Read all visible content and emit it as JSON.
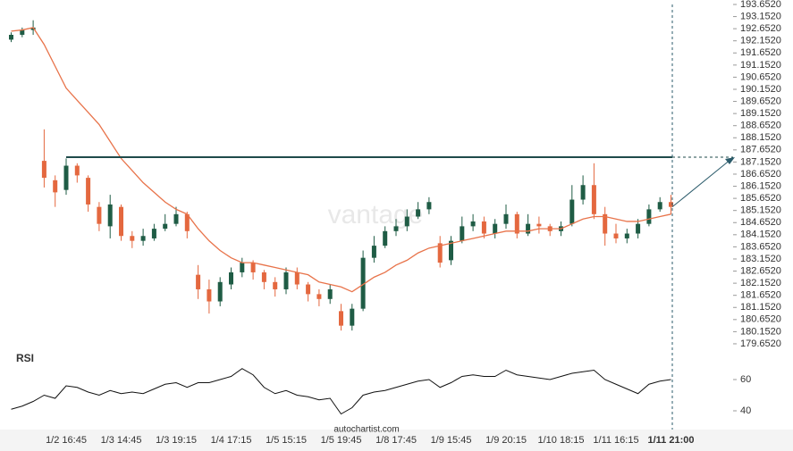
{
  "chart_data": [
    {
      "type": "candlestick",
      "categories": [
        null,
        null,
        null,
        null,
        null,
        "1/2 16:45",
        null,
        null,
        null,
        null,
        "1/3 14:45",
        null,
        null,
        null,
        null,
        "1/3 19:15",
        null,
        null,
        null,
        null,
        "1/4 17:15",
        null,
        null,
        null,
        null,
        "1/5 15:15",
        null,
        null,
        null,
        null,
        "1/5 19:45",
        null,
        null,
        null,
        null,
        "1/8 17:45",
        null,
        null,
        null,
        null,
        "1/9 15:45",
        null,
        null,
        null,
        null,
        "1/9 20:15",
        null,
        null,
        null,
        null,
        "1/10 18:15",
        null,
        null,
        null,
        null,
        "1/11 16:15",
        null,
        null,
        null,
        null,
        "1/11 21:00"
      ],
      "open": [
        192.2,
        192.4,
        192.6,
        187.2,
        186.4,
        186.0,
        187.0,
        186.5,
        185.3,
        184.5,
        185.3,
        184.1,
        183.9,
        184.0,
        184.4,
        184.6,
        185.0,
        182.5,
        181.9,
        181.4,
        182.1,
        182.6,
        183.0,
        182.6,
        182.2,
        181.9,
        182.6,
        182.1,
        181.7,
        181.5,
        181.0,
        180.4,
        181.1,
        183.2,
        183.7,
        184.3,
        184.5,
        184.9,
        185.2,
        183.8,
        183.1,
        183.9,
        184.5,
        184.7,
        184.2,
        184.6,
        185.0,
        184.2,
        184.6,
        184.5,
        184.3,
        184.6,
        185.6,
        186.2,
        185.0,
        184.2,
        184.0,
        184.2,
        184.6,
        185.2,
        185.5
      ],
      "high": [
        192.5,
        192.7,
        193.0,
        188.5,
        186.6,
        187.3,
        187.1,
        186.6,
        185.5,
        185.8,
        185.4,
        184.3,
        184.4,
        184.6,
        185.0,
        185.3,
        185.1,
        182.9,
        182.3,
        182.4,
        182.8,
        183.2,
        183.1,
        182.7,
        182.4,
        182.8,
        182.8,
        182.2,
        181.9,
        182.1,
        181.3,
        181.3,
        183.5,
        184.1,
        184.5,
        184.8,
        185.2,
        185.5,
        185.7,
        184.1,
        184.1,
        184.9,
        185.0,
        184.9,
        184.8,
        185.4,
        185.1,
        185.0,
        184.9,
        184.6,
        184.7,
        186.2,
        186.6,
        187.1,
        185.3,
        184.6,
        184.4,
        184.8,
        185.4,
        185.7,
        185.8
      ],
      "low": [
        192.1,
        192.3,
        192.4,
        186.1,
        185.3,
        185.8,
        186.3,
        185.1,
        184.3,
        184.0,
        183.9,
        183.6,
        183.7,
        183.9,
        184.3,
        184.5,
        184.0,
        181.5,
        180.9,
        181.2,
        181.9,
        182.4,
        182.3,
        181.9,
        181.6,
        181.7,
        181.9,
        181.4,
        181.2,
        181.3,
        180.2,
        180.2,
        181.0,
        183.0,
        183.6,
        184.1,
        184.3,
        184.8,
        185.0,
        182.8,
        182.9,
        183.8,
        184.3,
        184.0,
        184.0,
        184.4,
        184.0,
        184.1,
        184.2,
        184.1,
        184.1,
        184.5,
        185.4,
        184.8,
        183.7,
        183.8,
        183.8,
        184.0,
        184.5,
        185.1,
        185.0
      ],
      "close": [
        192.4,
        192.6,
        192.7,
        186.5,
        185.9,
        187.0,
        186.6,
        185.4,
        184.6,
        185.4,
        184.1,
        183.9,
        184.1,
        184.4,
        184.6,
        185.0,
        184.3,
        181.9,
        181.4,
        182.2,
        182.6,
        183.0,
        182.6,
        182.2,
        181.9,
        182.6,
        182.1,
        181.7,
        181.5,
        181.9,
        180.4,
        181.1,
        183.2,
        183.7,
        184.3,
        184.5,
        184.9,
        185.2,
        185.5,
        183.0,
        183.9,
        184.5,
        184.7,
        184.2,
        184.6,
        185.0,
        184.2,
        184.6,
        184.5,
        184.3,
        184.5,
        185.6,
        186.2,
        185.0,
        184.2,
        184.0,
        184.2,
        184.6,
        185.2,
        185.5,
        185.3
      ],
      "up_color": "#1f5c45",
      "down_color": "#e4683f",
      "moving_average": {
        "color": "#e8734a",
        "values": [
          192.55,
          192.6,
          192.7,
          192.0,
          191.1,
          190.2,
          189.7,
          189.2,
          188.7,
          188.0,
          187.3,
          186.8,
          186.3,
          185.9,
          185.5,
          185.2,
          185.0,
          184.4,
          183.9,
          183.5,
          183.2,
          183.0,
          183.0,
          182.9,
          182.8,
          182.7,
          182.6,
          182.5,
          182.2,
          182.1,
          182.0,
          181.8,
          182.1,
          182.4,
          182.6,
          182.9,
          183.1,
          183.4,
          183.6,
          183.7,
          183.8,
          183.9,
          184.0,
          184.1,
          184.2,
          184.3,
          184.3,
          184.3,
          184.4,
          184.4,
          184.4,
          184.6,
          184.8,
          184.9,
          184.9,
          184.8,
          184.7,
          184.7,
          184.8,
          184.9,
          185.0
        ]
      },
      "resistance": {
        "value": 187.35,
        "color": "#1e4a4a"
      },
      "ylim": [
        179.4,
        193.652
      ],
      "yticks": [
        {
          "value": 193.652,
          "label": "193.6520"
        },
        {
          "value": 193.152,
          "label": "193.1520"
        },
        {
          "value": 192.652,
          "label": "192.6520"
        },
        {
          "value": 192.152,
          "label": "192.1520"
        },
        {
          "value": 191.652,
          "label": "191.6520"
        },
        {
          "value": 191.152,
          "label": "191.1520"
        },
        {
          "value": 190.652,
          "label": "190.6520"
        },
        {
          "value": 190.152,
          "label": "190.1520"
        },
        {
          "value": 189.652,
          "label": "189.6520"
        },
        {
          "value": 189.152,
          "label": "189.1520"
        },
        {
          "value": 188.652,
          "label": "188.6520"
        },
        {
          "value": 188.152,
          "label": "188.1520"
        },
        {
          "value": 187.652,
          "label": "187.6520"
        },
        {
          "value": 187.152,
          "label": "187.1520"
        },
        {
          "value": 186.652,
          "label": "186.6520"
        },
        {
          "value": 186.152,
          "label": "186.1520"
        },
        {
          "value": 185.652,
          "label": "185.6520"
        },
        {
          "value": 185.152,
          "label": "185.1520"
        },
        {
          "value": 184.652,
          "label": "184.6520"
        },
        {
          "value": 184.152,
          "label": "184.1520"
        },
        {
          "value": 183.652,
          "label": "183.6520"
        },
        {
          "value": 183.152,
          "label": "183.1520"
        },
        {
          "value": 182.652,
          "label": "182.6520"
        },
        {
          "value": 182.152,
          "label": "182.1520"
        },
        {
          "value": 181.652,
          "label": "181.6520"
        },
        {
          "value": 181.152,
          "label": "181.1520"
        },
        {
          "value": 180.652,
          "label": "180.6520"
        },
        {
          "value": 180.152,
          "label": "180.1520"
        },
        {
          "value": 179.652,
          "label": "179.6520"
        }
      ],
      "watermark": "vantage"
    },
    {
      "type": "line",
      "title": "RSI",
      "color": "#111111",
      "values": [
        41,
        43,
        46,
        50,
        48,
        56,
        55,
        52,
        50,
        53,
        51,
        52,
        51,
        54,
        57,
        58,
        55,
        58,
        58,
        60,
        62,
        67,
        63,
        55,
        51,
        53,
        50,
        49,
        47,
        48,
        38,
        42,
        50,
        52,
        53,
        55,
        57,
        59,
        60,
        55,
        58,
        62,
        63,
        62,
        62,
        66,
        63,
        62,
        61,
        60,
        62,
        64,
        65,
        66,
        60,
        57,
        54,
        51,
        57,
        59,
        60
      ],
      "ylim": [
        29,
        77
      ],
      "yticks": [
        60,
        40
      ],
      "source": "autochartist.com"
    }
  ]
}
